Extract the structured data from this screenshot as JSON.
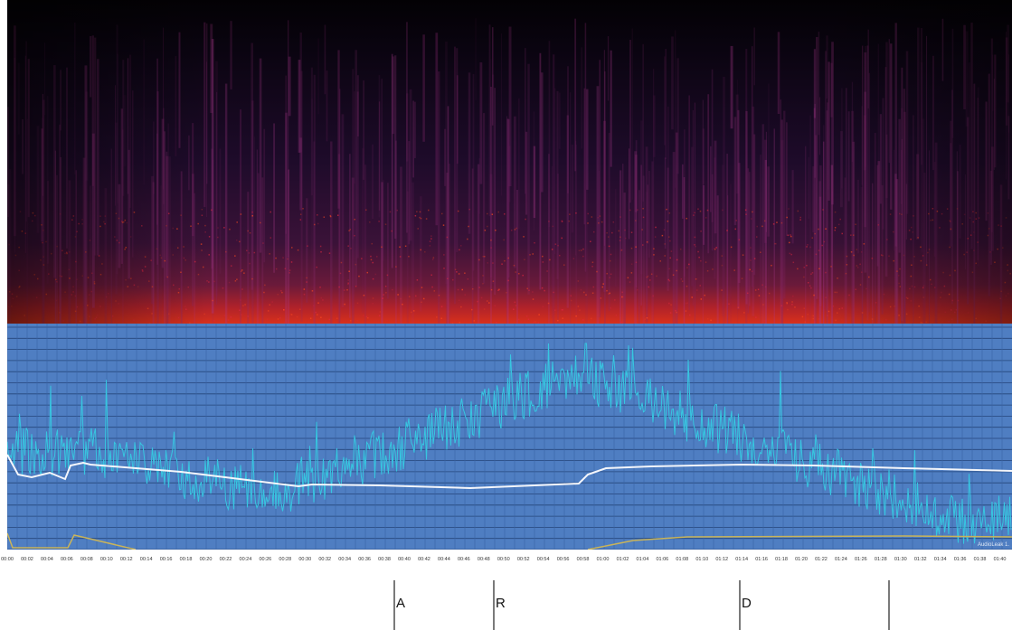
{
  "timeline": {
    "labels": [
      "00:00",
      "00:02",
      "00:04",
      "00:06",
      "00:08",
      "00:10",
      "00:12",
      "00:14",
      "00:16",
      "00:18",
      "00:20",
      "00:22",
      "00:24",
      "00:26",
      "00:28",
      "00:30",
      "00:32",
      "00:34",
      "00:36",
      "00:38",
      "00:40",
      "00:42",
      "00:44",
      "00:46",
      "00:48",
      "00:50",
      "00:52",
      "00:54",
      "00:56",
      "00:58",
      "01:00",
      "01:02",
      "01:04",
      "01:06",
      "01:08",
      "01:10",
      "01:12",
      "01:14",
      "01:16",
      "01:18",
      "01:20",
      "01:22",
      "01:24",
      "01:26",
      "01:28",
      "01:30",
      "01:32",
      "01:34",
      "01:36",
      "01:38",
      "01:40",
      "01:42"
    ]
  },
  "watermark": "AudioLeak 1.",
  "markers": [
    {
      "label": "A"
    },
    {
      "label": "R"
    },
    {
      "label": "D"
    }
  ]
}
